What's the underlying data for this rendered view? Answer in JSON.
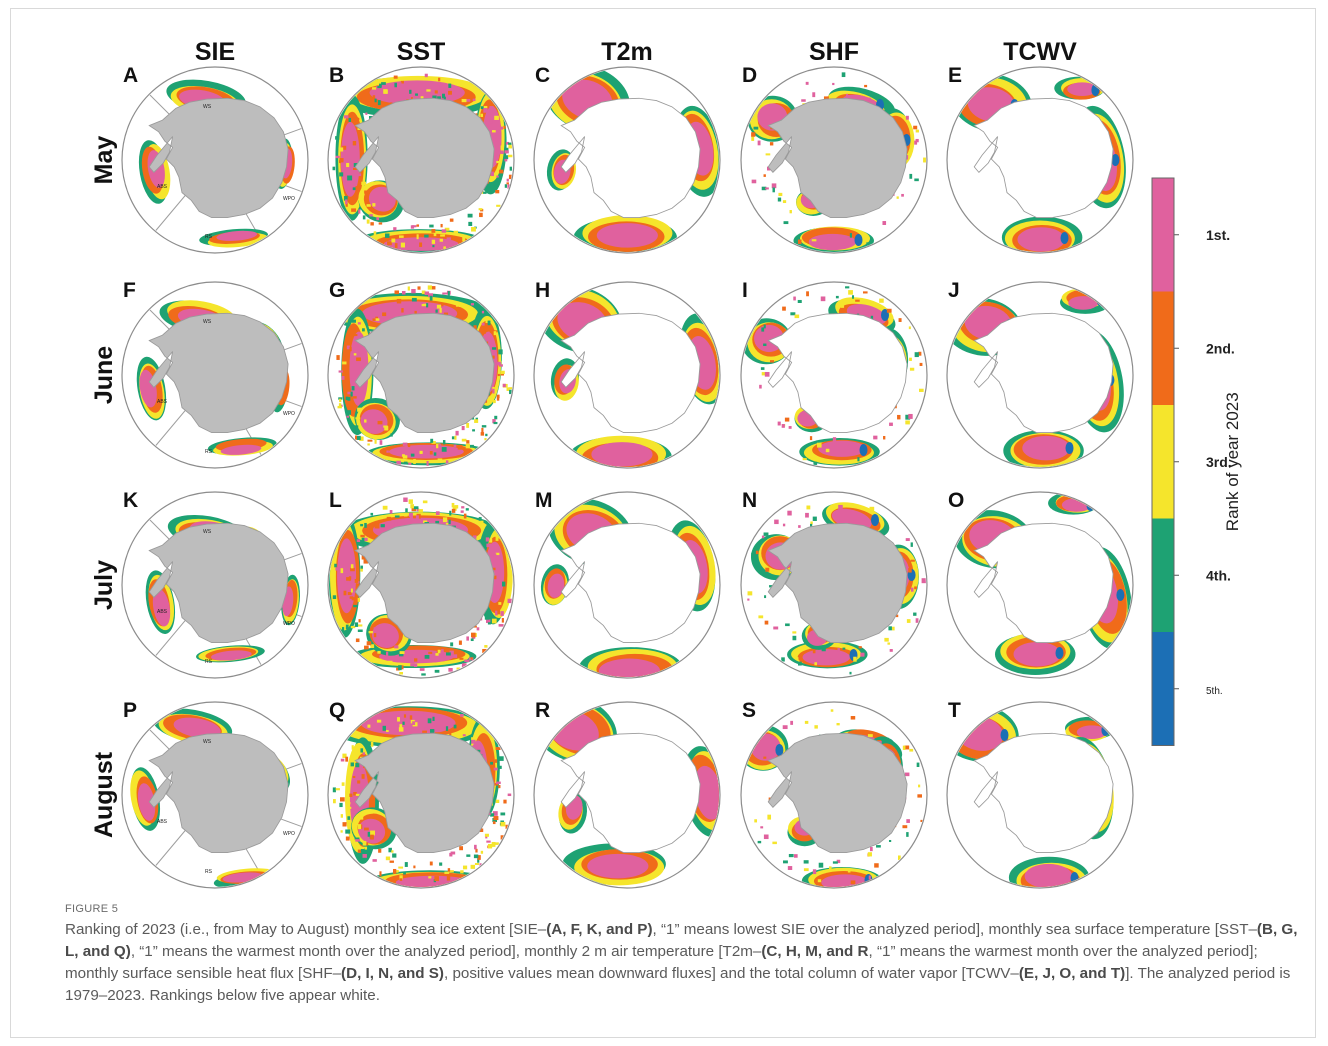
{
  "figure": {
    "columns": [
      "SIE",
      "SST",
      "T2m",
      "SHF",
      "TCWV"
    ],
    "rows": [
      "May",
      "June",
      "July",
      "August"
    ],
    "panel_letters": [
      "A",
      "B",
      "C",
      "D",
      "E",
      "F",
      "G",
      "H",
      "I",
      "J",
      "K",
      "L",
      "M",
      "N",
      "O",
      "P",
      "Q",
      "R",
      "S",
      "T"
    ],
    "sie_region_labels": [
      "WS",
      "ABS",
      "WPO",
      "RS"
    ],
    "colorbar": {
      "title": "Rank of year 2023",
      "levels": [
        {
          "label": "1st.",
          "color": "#e0619e"
        },
        {
          "label": "2nd.",
          "color": "#f06b1a"
        },
        {
          "label": "3rd.",
          "color": "#f5e52c"
        },
        {
          "label": "4th.",
          "color": "#1ea273"
        },
        {
          "label": "5th.",
          "color": "#1c6fb5"
        }
      ]
    },
    "land_color": "#bdbdbd"
  },
  "caption": {
    "label": "FIGURE 5",
    "parts": [
      {
        "t": "Ranking of 2023 (i.e., from May to August) monthly sea ice extent [SIE–"
      },
      {
        "t": "(A, F, K, and P)",
        "b": true
      },
      {
        "t": ", “1” means lowest SIE over the analyzed period], monthly sea surface temperature [SST–"
      },
      {
        "t": "(B, G, L, and Q)",
        "b": true
      },
      {
        "t": ", “1” means the warmest month over the analyzed period], monthly 2 m air temperature [T2m–"
      },
      {
        "t": "(C, H, M, and R",
        "b": true
      },
      {
        "t": ", “1” means the warmest month over the analyzed period]; monthly surface sensible heat flux [SHF–"
      },
      {
        "t": "(D, I, N, and S)",
        "b": true
      },
      {
        "t": ", positive values mean downward fluxes] and the total column of water vapor [TCWV–"
      },
      {
        "t": "(E, J, O, and T)",
        "b": true
      },
      {
        "t": "]. The analyzed period is 1979–2023. Rankings below five appear white."
      }
    ]
  }
}
